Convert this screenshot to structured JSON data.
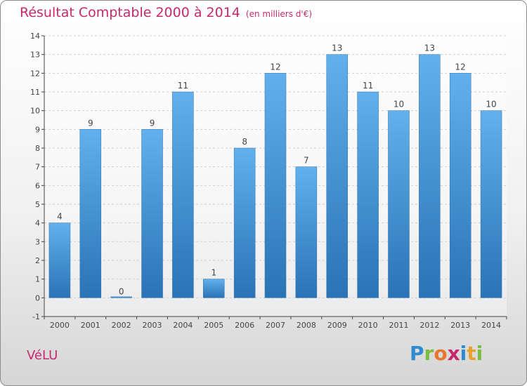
{
  "title": "Résultat Comptable 2000 à 2014",
  "subtitle": "(en milliers d'€)",
  "place": "VéLU",
  "logo": {
    "text": "Proxiti",
    "colors": [
      "#2e8bcf",
      "#7bbd3f",
      "#e8772e",
      "#c8286e",
      "#2e8bcf",
      "#e8a12e",
      "#7bbd3f"
    ]
  },
  "colors": {
    "bar": "#4a9de0",
    "bar_light": "#62b0ec",
    "bar_dark": "#2a73b5",
    "axis": "#444444",
    "grid": "#cfcfcf",
    "title": "#c8286e"
  },
  "chart_data": {
    "type": "bar",
    "title": "Résultat Comptable 2000 à 2014",
    "xlabel": "",
    "ylabel": "",
    "categories": [
      "2000",
      "2001",
      "2002",
      "2003",
      "2004",
      "2005",
      "2006",
      "2007",
      "2008",
      "2009",
      "2010",
      "2011",
      "2012",
      "2013",
      "2014"
    ],
    "values": [
      4,
      9,
      0,
      9,
      11,
      1,
      8,
      12,
      7,
      13,
      11,
      10,
      13,
      12,
      10
    ],
    "ylim": [
      -1,
      14
    ],
    "yticks": [
      -1,
      0,
      1,
      2,
      3,
      4,
      5,
      6,
      7,
      8,
      9,
      10,
      11,
      12,
      13,
      14
    ],
    "grid": true
  }
}
